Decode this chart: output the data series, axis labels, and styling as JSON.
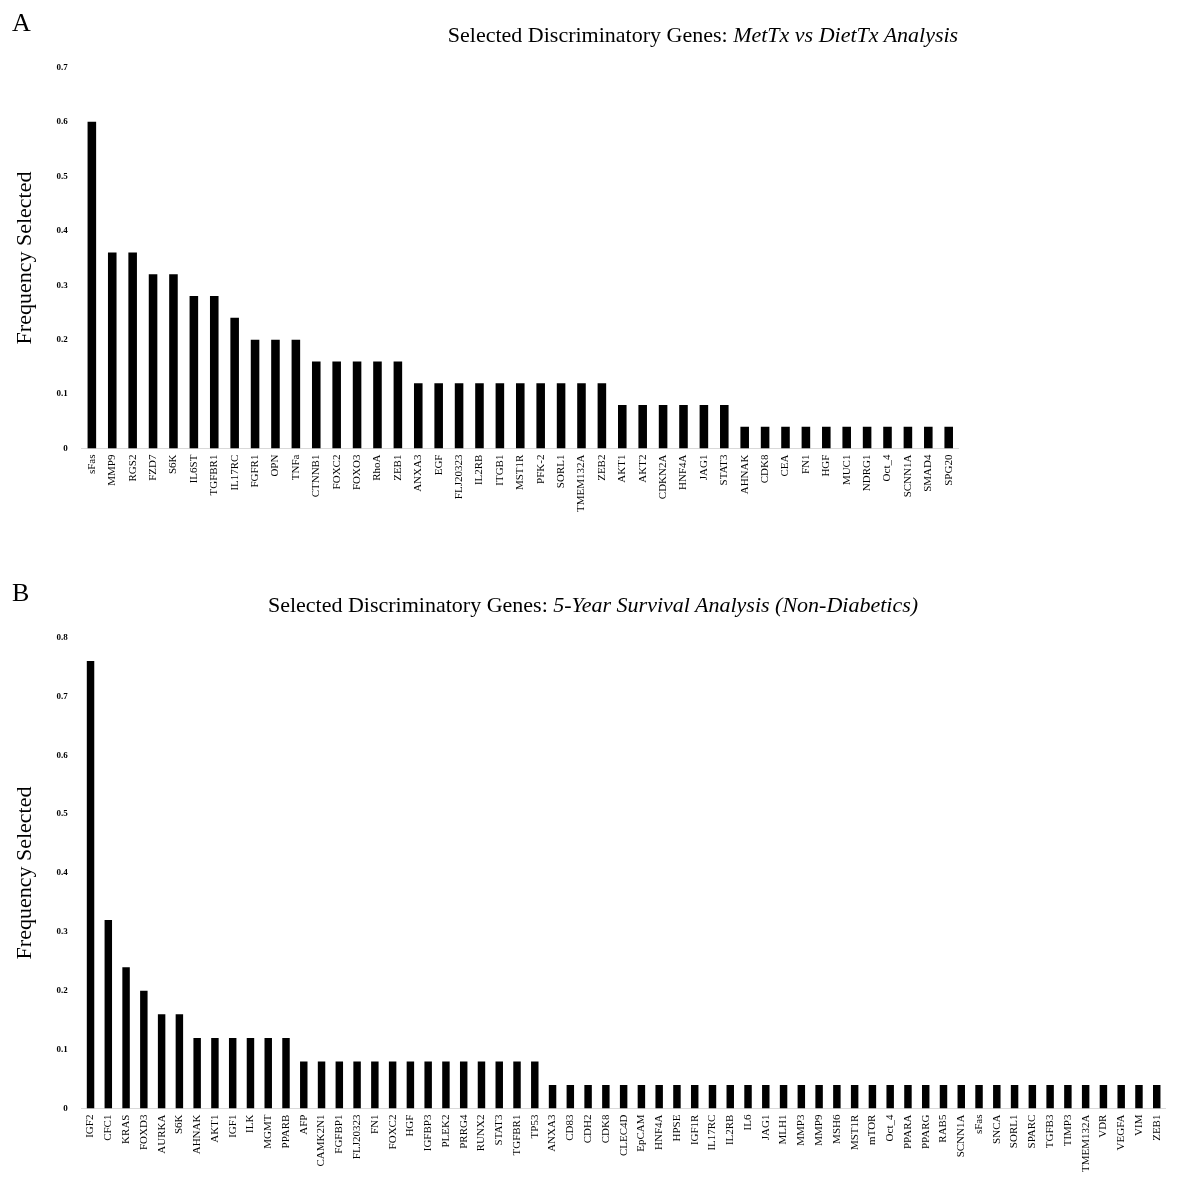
{
  "chart_data": [
    {
      "type": "bar",
      "title": "Selected Discriminatory Genes: MetTx vs DietTx Analysis",
      "ylabel": "Frequency Selected",
      "annotations": [
        "A"
      ],
      "color": "#000000",
      "ylim": [
        0,
        0.7
      ],
      "yticks": [
        0,
        0.1,
        0.2,
        0.3,
        0.4,
        0.5,
        0.6,
        0.7
      ],
      "grid": false,
      "legend": false,
      "categories": [
        "sFas",
        "MMP9",
        "RGS2",
        "FZD7",
        "S6K",
        "IL6ST",
        "TGFBR1",
        "IL17RC",
        "FGFR1",
        "OPN",
        "TNFa",
        "CTNNB1",
        "FOXC2",
        "FOXO3",
        "RhoA",
        "ZEB1",
        "ANXA3",
        "EGF",
        "FLJ20323",
        "IL2RB",
        "ITGB1",
        "MST1R",
        "PFK-2",
        "SORL1",
        "TMEM132A",
        "ZEB2",
        "AKT1",
        "AKT2",
        "CDKN2A",
        "HNF4A",
        "JAG1",
        "STAT3",
        "AHNAK",
        "CDK8",
        "CEA",
        "FN1",
        "HGF",
        "MUC1",
        "NDRG1",
        "Oct_4",
        "SCNN1A",
        "SMAD4",
        "SPG20"
      ],
      "values": [
        0.6,
        0.36,
        0.36,
        0.32,
        0.32,
        0.28,
        0.28,
        0.24,
        0.2,
        0.2,
        0.2,
        0.16,
        0.16,
        0.16,
        0.16,
        0.16,
        0.12,
        0.12,
        0.12,
        0.12,
        0.12,
        0.12,
        0.12,
        0.12,
        0.12,
        0.12,
        0.08,
        0.08,
        0.08,
        0.08,
        0.08,
        0.08,
        0.04,
        0.04,
        0.04,
        0.04,
        0.04,
        0.04,
        0.04,
        0.04,
        0.04,
        0.04,
        0.04
      ]
    },
    {
      "type": "bar",
      "title": "Selected Discriminatory Genes: 5-Year Survival Analysis (Non-Diabetics)",
      "ylabel": "Frequency Selected",
      "annotations": [
        "B"
      ],
      "color": "#000000",
      "ylim": [
        0,
        0.8
      ],
      "yticks": [
        0,
        0.1,
        0.2,
        0.3,
        0.4,
        0.5,
        0.6,
        0.7,
        0.8
      ],
      "grid": false,
      "legend": false,
      "categories": [
        "IGF2",
        "CFC1",
        "KRAS",
        "FOXD3",
        "AURKA",
        "S6K",
        "AHNAK",
        "AKT1",
        "IGF1",
        "ILK",
        "MGMT",
        "PPARB",
        "AFP",
        "CAMK2N1",
        "FGFBP1",
        "FLJ20323",
        "FN1",
        "FOXC2",
        "HGF",
        "IGFBP3",
        "PLEK2",
        "PRRG4",
        "RUNX2",
        "STAT3",
        "TGFBR1",
        "TP53",
        "ANXA3",
        "CD83",
        "CDH2",
        "CDK8",
        "CLEC4D",
        "EpCAM",
        "HNF4A",
        "HPSE",
        "IGF1R",
        "IL17RC",
        "IL2RB",
        "IL6",
        "JAG1",
        "MLH1",
        "MMP3",
        "MMP9",
        "MSH6",
        "MST1R",
        "mTOR",
        "Oct_4",
        "PPARA",
        "PPARG",
        "RAB5",
        "SCNN1A",
        "sFas",
        "SNCA",
        "SORL1",
        "SPARC",
        "TGFB3",
        "TIMP3",
        "TMEM132A",
        "VDR",
        "VEGFA",
        "VIM",
        "ZEB1"
      ],
      "values": [
        0.76,
        0.32,
        0.24,
        0.2,
        0.16,
        0.16,
        0.12,
        0.12,
        0.12,
        0.12,
        0.12,
        0.12,
        0.08,
        0.08,
        0.08,
        0.08,
        0.08,
        0.08,
        0.08,
        0.08,
        0.08,
        0.08,
        0.08,
        0.08,
        0.08,
        0.08,
        0.04,
        0.04,
        0.04,
        0.04,
        0.04,
        0.04,
        0.04,
        0.04,
        0.04,
        0.04,
        0.04,
        0.04,
        0.04,
        0.04,
        0.04,
        0.04,
        0.04,
        0.04,
        0.04,
        0.04,
        0.04,
        0.04,
        0.04,
        0.04,
        0.04,
        0.04,
        0.04,
        0.04,
        0.04,
        0.04,
        0.04,
        0.04,
        0.04,
        0.04,
        0.04
      ]
    }
  ]
}
